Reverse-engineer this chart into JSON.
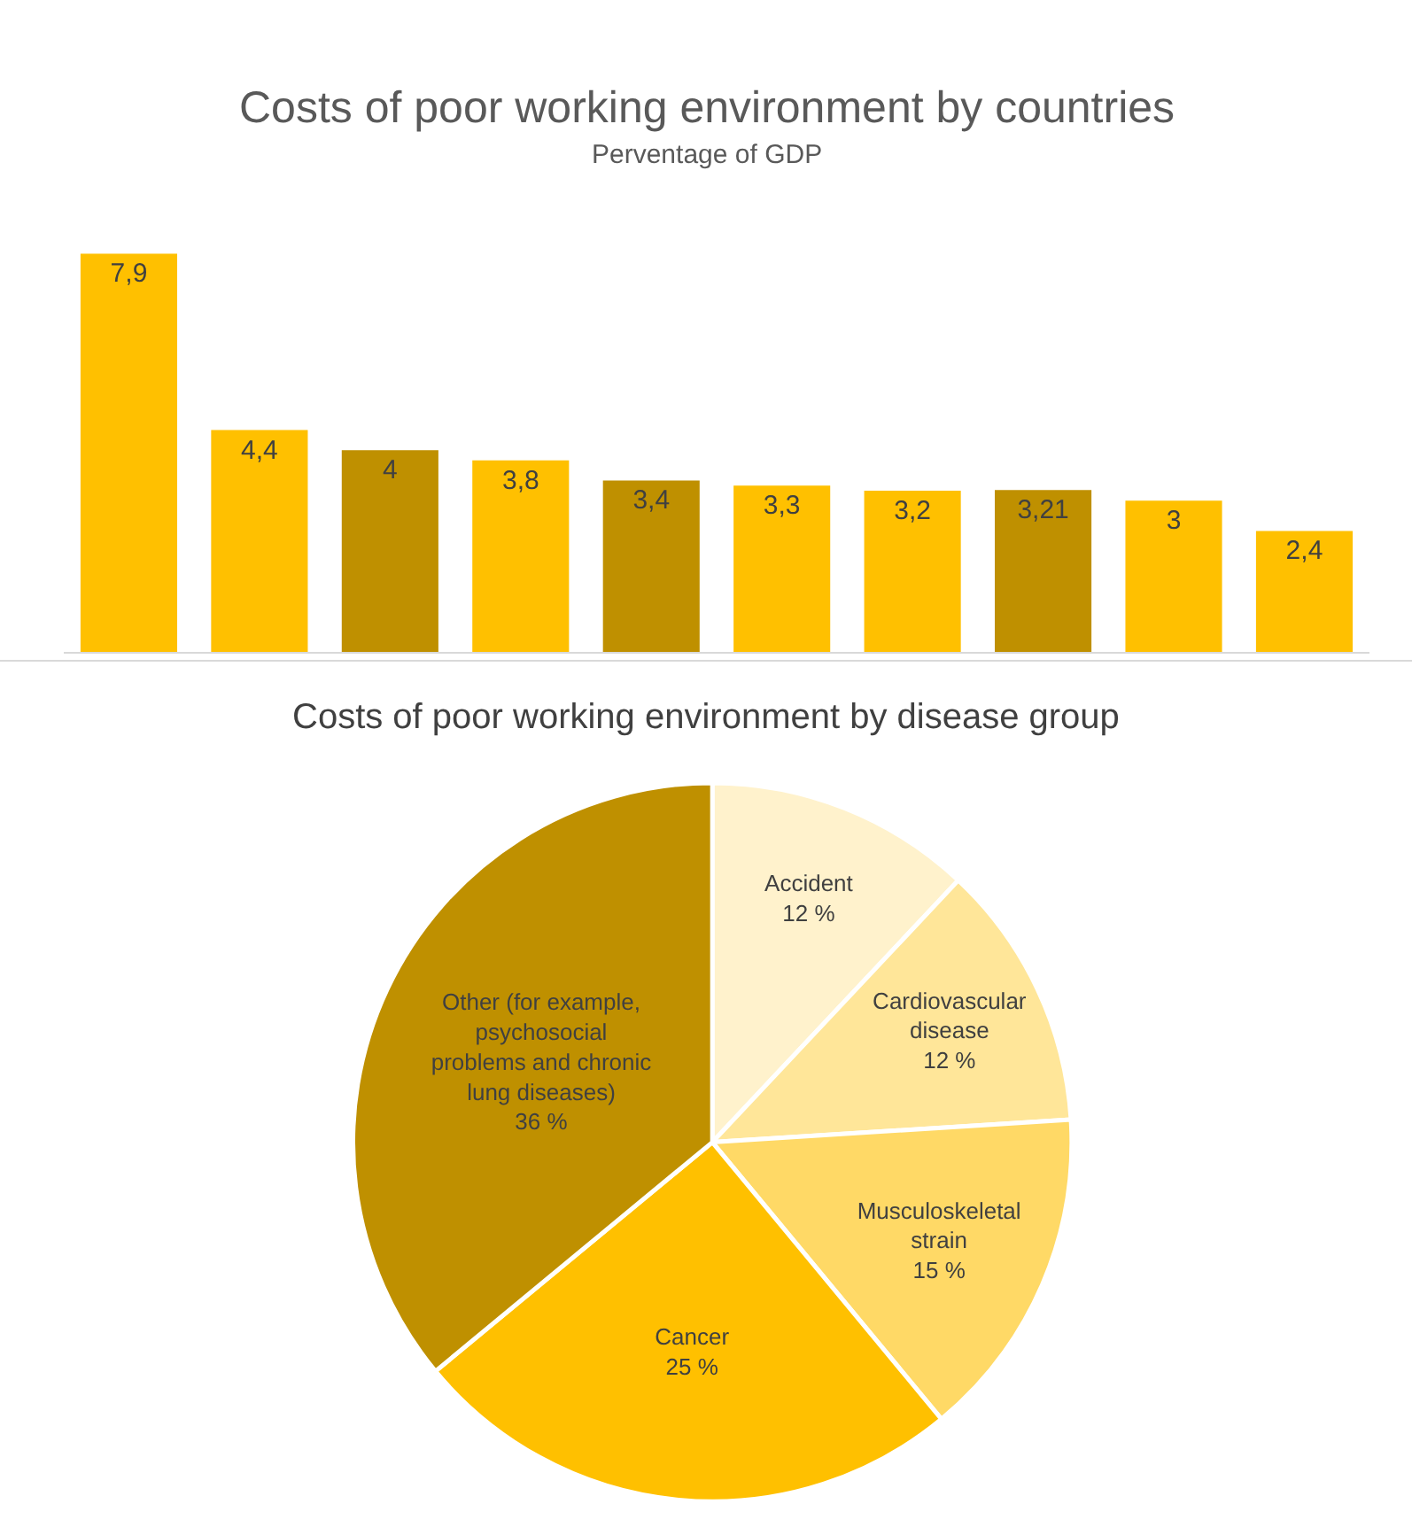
{
  "chart_data": [
    {
      "type": "bar",
      "title": "Costs of poor working environment by countries",
      "subtitle": "Perventage of GDP",
      "categories": [
        null,
        null,
        null,
        null,
        null,
        null,
        null,
        null,
        null,
        null
      ],
      "values": [
        7.9,
        4.4,
        4,
        3.8,
        3.4,
        3.3,
        3.2,
        3.21,
        3,
        2.4
      ],
      "colors": [
        "#ffc000",
        "#ffc000",
        "#bf9000",
        "#ffc000",
        "#bf9000",
        "#ffc000",
        "#ffc000",
        "#bf9000",
        "#ffc000",
        "#ffc000"
      ],
      "value_labels": [
        "7,9",
        "4,4",
        "4",
        "3,8",
        "3,4",
        "3,3",
        "3,2",
        "3,21",
        "3",
        "2,4"
      ]
    },
    {
      "type": "pie",
      "title": "Costs of poor working environment by disease group",
      "categories": [
        "Accident",
        "Cardiovascular disease",
        "Musculoskeletal strain",
        "Cancer",
        "Other (for example, psychosocial problems and chronic lung diseases)"
      ],
      "values": [
        12,
        12,
        15,
        25,
        36
      ],
      "colors": [
        "#fff2cc",
        "#ffe699",
        "#ffd966",
        "#ffc000",
        "#bf9000"
      ],
      "value_labels": [
        "12 %",
        "12 %",
        "15 %",
        "25 %",
        "36 %"
      ]
    }
  ]
}
